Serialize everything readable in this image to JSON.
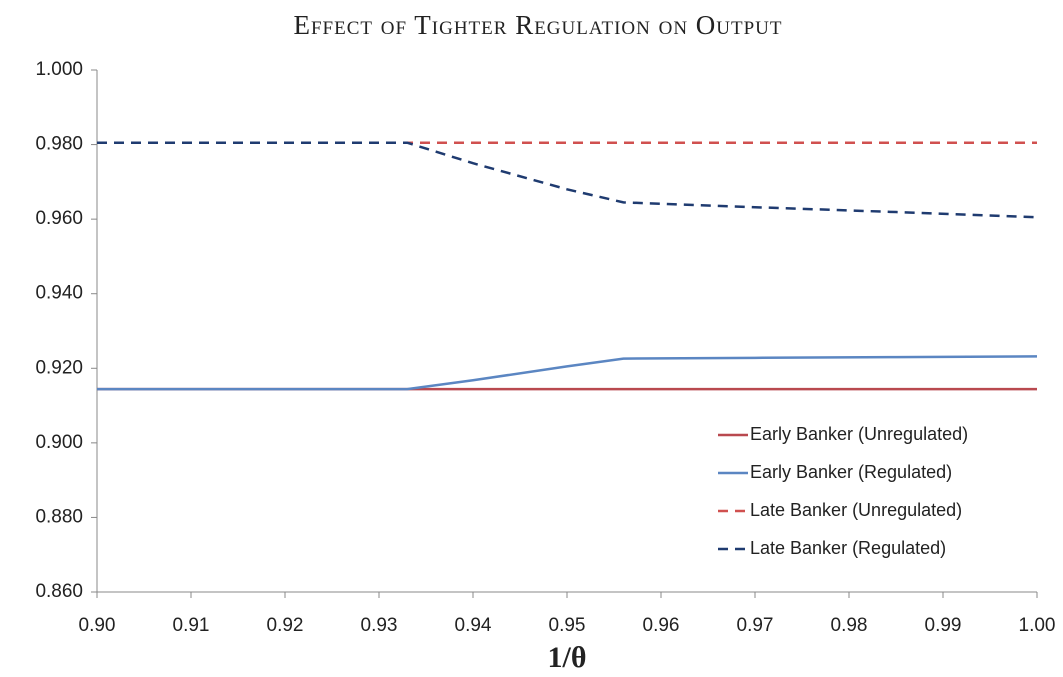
{
  "chart_data": {
    "type": "line",
    "title": "Effect of Tighter Regulation on Output",
    "x_label": "1/θ",
    "x": [
      0.9,
      0.91,
      0.92,
      0.933,
      0.94,
      0.95,
      0.956,
      0.97,
      0.985,
      1.0
    ],
    "series": [
      {
        "name": "Early Banker (Unregulated)",
        "color": "#b9494f",
        "dashed": false,
        "values": [
          0.9144,
          0.9144,
          0.9144,
          0.9144,
          0.9144,
          0.9144,
          0.9144,
          0.9144,
          0.9144,
          0.9144
        ]
      },
      {
        "name": "Early Banker (Regulated)",
        "color": "#5b86c2",
        "dashed": false,
        "values": [
          0.9144,
          0.9144,
          0.9144,
          0.9144,
          0.9168,
          0.9205,
          0.9226,
          0.9228,
          0.923,
          0.9232
        ]
      },
      {
        "name": "Late Banker (Unregulated)",
        "color": "#d0504f",
        "dashed": true,
        "values": [
          0.9805,
          0.9805,
          0.9805,
          0.9805,
          0.9805,
          0.9805,
          0.9805,
          0.9805,
          0.9805,
          0.9805
        ]
      },
      {
        "name": "Late Banker (Regulated)",
        "color": "#1f3b70",
        "dashed": true,
        "values": [
          0.9805,
          0.9805,
          0.9805,
          0.9805,
          0.975,
          0.968,
          0.9645,
          0.9632,
          0.9619,
          0.9605
        ]
      }
    ],
    "xlim": [
      0.9,
      1.0
    ],
    "xticks": [
      {
        "value": 0.9,
        "label": "0.90"
      },
      0.91,
      0.92,
      0.93,
      0.94,
      0.95,
      0.96,
      0.97,
      0.98,
      0.99,
      {
        "value": 1.0,
        "label": "1.00"
      }
    ],
    "ylim": [
      0.86,
      1.0
    ],
    "yticks": [
      {
        "value": 0.86,
        "label": "0.860"
      },
      {
        "value": 0.88,
        "label": "0.880"
      },
      {
        "value": 0.9,
        "label": "0.900"
      },
      {
        "value": 0.92,
        "label": "0.920"
      },
      {
        "value": 0.94,
        "label": "0.940"
      },
      {
        "value": 0.96,
        "label": "0.960"
      },
      {
        "value": 0.98,
        "label": "0.980"
      },
      {
        "value": 1.0,
        "label": "1.000"
      }
    ],
    "grid": false,
    "legend_position": "lower right"
  }
}
